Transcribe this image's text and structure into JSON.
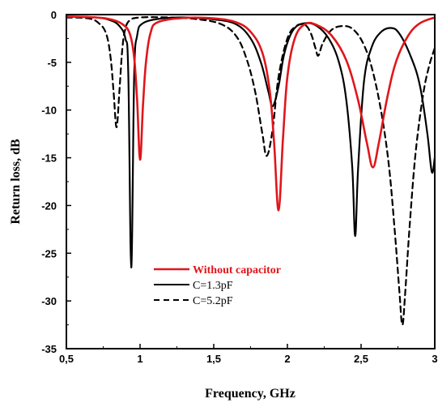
{
  "chart_data": {
    "type": "line",
    "xlabel": "Frequency, GHz",
    "ylabel": "Return loss, dB",
    "xlim": [
      0.5,
      3
    ],
    "ylim": [
      -35,
      0
    ],
    "x_ticks": [
      0.5,
      1,
      1.5,
      2,
      2.5,
      3
    ],
    "x_tick_labels": [
      "0,5",
      "1",
      "1,5",
      "2",
      "2,5",
      "3"
    ],
    "y_ticks": [
      0,
      -5,
      -10,
      -15,
      -20,
      -25,
      -30,
      -35
    ],
    "y_tick_labels": [
      "0",
      "-5",
      "-10",
      "-15",
      "-20",
      "-25",
      "-30",
      "-35"
    ],
    "grid": false,
    "legend_position": "bottom-left",
    "series": [
      {
        "name": "Without capacitor",
        "color": "#e0161b",
        "style": "solid",
        "points": [
          [
            0.5,
            -0.2
          ],
          [
            0.7,
            -0.3
          ],
          [
            0.8,
            -0.5
          ],
          [
            0.88,
            -1.0
          ],
          [
            0.93,
            -2.0
          ],
          [
            0.96,
            -4.5
          ],
          [
            0.98,
            -9.0
          ],
          [
            1.0,
            -15.2
          ],
          [
            1.02,
            -9.5
          ],
          [
            1.04,
            -5.0
          ],
          [
            1.07,
            -2.0
          ],
          [
            1.12,
            -0.8
          ],
          [
            1.3,
            -0.35
          ],
          [
            1.5,
            -0.4
          ],
          [
            1.65,
            -0.8
          ],
          [
            1.75,
            -1.8
          ],
          [
            1.83,
            -4.0
          ],
          [
            1.88,
            -8.0
          ],
          [
            1.91,
            -13.5
          ],
          [
            1.94,
            -20.5
          ],
          [
            1.97,
            -13.0
          ],
          [
            2.0,
            -6.5
          ],
          [
            2.05,
            -2.5
          ],
          [
            2.12,
            -1.0
          ],
          [
            2.2,
            -1.1
          ],
          [
            2.3,
            -2.2
          ],
          [
            2.4,
            -4.8
          ],
          [
            2.48,
            -9.0
          ],
          [
            2.54,
            -13.5
          ],
          [
            2.58,
            -16.0
          ],
          [
            2.62,
            -13.5
          ],
          [
            2.68,
            -8.5
          ],
          [
            2.74,
            -4.8
          ],
          [
            2.82,
            -2.2
          ],
          [
            2.9,
            -0.9
          ],
          [
            3.0,
            -0.3
          ]
        ]
      },
      {
        "name": "C=1.3pF",
        "color": "#000000",
        "style": "solid",
        "points": [
          [
            0.5,
            -0.2
          ],
          [
            0.7,
            -0.3
          ],
          [
            0.8,
            -0.6
          ],
          [
            0.86,
            -1.2
          ],
          [
            0.9,
            -2.5
          ],
          [
            0.92,
            -6.0
          ],
          [
            0.94,
            -26.5
          ],
          [
            0.96,
            -6.5
          ],
          [
            0.98,
            -2.2
          ],
          [
            1.02,
            -0.9
          ],
          [
            1.15,
            -0.4
          ],
          [
            1.3,
            -0.3
          ],
          [
            1.5,
            -0.5
          ],
          [
            1.65,
            -1.0
          ],
          [
            1.75,
            -2.5
          ],
          [
            1.82,
            -5.0
          ],
          [
            1.87,
            -8.0
          ],
          [
            1.9,
            -9.6
          ],
          [
            1.94,
            -7.5
          ],
          [
            1.98,
            -4.0
          ],
          [
            2.04,
            -1.6
          ],
          [
            2.12,
            -0.9
          ],
          [
            2.2,
            -1.2
          ],
          [
            2.28,
            -2.5
          ],
          [
            2.35,
            -5.0
          ],
          [
            2.4,
            -9.0
          ],
          [
            2.44,
            -16.0
          ],
          [
            2.46,
            -23.2
          ],
          [
            2.48,
            -16.0
          ],
          [
            2.52,
            -7.0
          ],
          [
            2.57,
            -3.5
          ],
          [
            2.63,
            -1.9
          ],
          [
            2.7,
            -1.4
          ],
          [
            2.76,
            -2.0
          ],
          [
            2.84,
            -4.5
          ],
          [
            2.9,
            -7.5
          ],
          [
            2.95,
            -12.5
          ],
          [
            2.98,
            -16.5
          ],
          [
            3.0,
            -15.0
          ]
        ]
      },
      {
        "name": "C=5.2pF",
        "color": "#000000",
        "style": "dashed",
        "points": [
          [
            0.5,
            -0.3
          ],
          [
            0.65,
            -0.4
          ],
          [
            0.72,
            -0.9
          ],
          [
            0.77,
            -2.0
          ],
          [
            0.8,
            -4.5
          ],
          [
            0.82,
            -8.0
          ],
          [
            0.84,
            -11.8
          ],
          [
            0.86,
            -8.0
          ],
          [
            0.88,
            -3.5
          ],
          [
            0.9,
            -1.5
          ],
          [
            0.93,
            -0.6
          ],
          [
            1.0,
            -0.3
          ],
          [
            1.2,
            -0.3
          ],
          [
            1.4,
            -0.5
          ],
          [
            1.55,
            -1.0
          ],
          [
            1.65,
            -2.2
          ],
          [
            1.72,
            -4.5
          ],
          [
            1.78,
            -8.0
          ],
          [
            1.83,
            -12.5
          ],
          [
            1.86,
            -14.8
          ],
          [
            1.9,
            -12.0
          ],
          [
            1.94,
            -6.5
          ],
          [
            2.0,
            -2.5
          ],
          [
            2.06,
            -1.2
          ],
          [
            2.12,
            -1.1
          ],
          [
            2.16,
            -2.0
          ],
          [
            2.19,
            -3.5
          ],
          [
            2.21,
            -4.3
          ],
          [
            2.24,
            -3.0
          ],
          [
            2.3,
            -1.6
          ],
          [
            2.38,
            -1.2
          ],
          [
            2.45,
            -1.6
          ],
          [
            2.52,
            -3.2
          ],
          [
            2.58,
            -6.0
          ],
          [
            2.64,
            -10.5
          ],
          [
            2.69,
            -16.0
          ],
          [
            2.73,
            -23.0
          ],
          [
            2.76,
            -29.0
          ],
          [
            2.78,
            -32.5
          ],
          [
            2.8,
            -29.0
          ],
          [
            2.83,
            -22.0
          ],
          [
            2.87,
            -14.5
          ],
          [
            2.92,
            -8.5
          ],
          [
            2.96,
            -5.5
          ],
          [
            3.0,
            -3.5
          ]
        ]
      }
    ],
    "legend": [
      {
        "label": "Without capacitor",
        "color": "#e0161b",
        "style": "solid"
      },
      {
        "label": "C=1.3pF",
        "color": "#000000",
        "style": "solid"
      },
      {
        "label": "C=5.2pF",
        "color": "#000000",
        "style": "dashed"
      }
    ]
  }
}
